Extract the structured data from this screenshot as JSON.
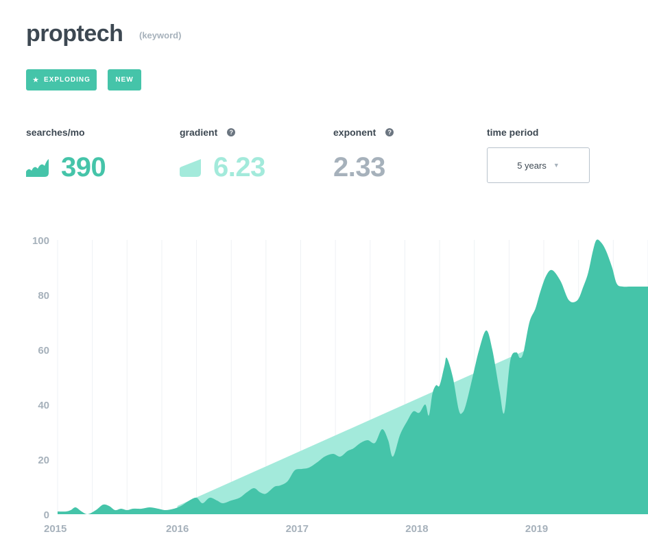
{
  "keyword": "proptech",
  "kind_label": "(keyword)",
  "badges": {
    "exploding": "EXPLODING",
    "new": "NEW"
  },
  "metrics": {
    "searches": {
      "label": "searches/mo",
      "value": "390"
    },
    "gradient": {
      "label": "gradient",
      "value": "6.23"
    },
    "exponent": {
      "label": "exponent",
      "value": "2.33"
    },
    "time_period": {
      "label": "time period",
      "value": "5 years"
    }
  },
  "help_glyph": "?",
  "star_glyph": "★",
  "caret_glyph": "▼",
  "colors": {
    "accent": "#45c4a9",
    "accent_light": "#a3eadb",
    "muted": "#a6b1bb",
    "text": "#3d4852"
  },
  "chart_data": {
    "type": "area",
    "title": "",
    "xlabel": "",
    "ylabel": "",
    "ylim": [
      0,
      100
    ],
    "yticks": [
      "0",
      "20",
      "40",
      "60",
      "80",
      "100"
    ],
    "xticks": [
      "2015",
      "2016",
      "2017",
      "2018",
      "2019"
    ],
    "xlim": [
      2015.0,
      2019.93
    ],
    "grid": "vertical",
    "series": [
      {
        "kind": "area",
        "color": "#45c4a9",
        "x": [
          2015.0,
          2015.07,
          2015.11,
          2015.15,
          2015.2,
          2015.25,
          2015.32,
          2015.38,
          2015.43,
          2015.48,
          2015.53,
          2015.58,
          2015.63,
          2015.7,
          2015.77,
          2015.84,
          2015.9,
          2015.97,
          2016.03,
          2016.1,
          2016.16,
          2016.21,
          2016.27,
          2016.33,
          2016.38,
          2016.45,
          2016.52,
          2016.58,
          2016.64,
          2016.69,
          2016.74,
          2016.81,
          2016.86,
          2016.92,
          2016.98,
          2017.04,
          2017.1,
          2017.17,
          2017.23,
          2017.3,
          2017.36,
          2017.42,
          2017.47,
          2017.53,
          2017.59,
          2017.65,
          2017.71,
          2017.76,
          2017.8,
          2017.86,
          2017.92,
          2017.97,
          2018.02,
          2018.07,
          2018.1,
          2018.13,
          2018.16,
          2018.19,
          2018.23,
          2018.25,
          2018.3,
          2018.35,
          2018.38,
          2018.41,
          2018.46,
          2018.52,
          2018.58,
          2018.63,
          2018.69,
          2018.73,
          2018.78,
          2018.83,
          2018.86,
          2018.89,
          2018.94,
          2018.99,
          2019.03,
          2019.08,
          2019.13,
          2019.2,
          2019.27,
          2019.34,
          2019.39,
          2019.43,
          2019.47,
          2019.5,
          2019.54,
          2019.58,
          2019.63,
          2019.67,
          2019.72,
          2019.78,
          2019.84,
          2019.88,
          2019.93
        ],
        "values": [
          1,
          1,
          1.5,
          2.5,
          1,
          0,
          1.5,
          3.5,
          3,
          1.5,
          2,
          1.5,
          2,
          2,
          2.5,
          2,
          1.5,
          2,
          3,
          5,
          6,
          4,
          6,
          5,
          4,
          5,
          6,
          8,
          9.5,
          8,
          7.5,
          10,
          10.5,
          12,
          16,
          16.5,
          17,
          19,
          21,
          22,
          21,
          23,
          24,
          26,
          27,
          26,
          31,
          27,
          21,
          29,
          34,
          37.5,
          37,
          40,
          36,
          44,
          47,
          47,
          54,
          57,
          50,
          38,
          37,
          40,
          49,
          60,
          67,
          60,
          45,
          37,
          56,
          59,
          57,
          59,
          70,
          75,
          81,
          87,
          89,
          85,
          78,
          78,
          83,
          88,
          96,
          100,
          99,
          96,
          90,
          84,
          83,
          83,
          83,
          83,
          83
        ]
      },
      {
        "kind": "trend",
        "color": "#a3eadb",
        "x": [
          2016.0,
          2019.28
        ],
        "values": [
          3,
          67
        ]
      }
    ]
  }
}
